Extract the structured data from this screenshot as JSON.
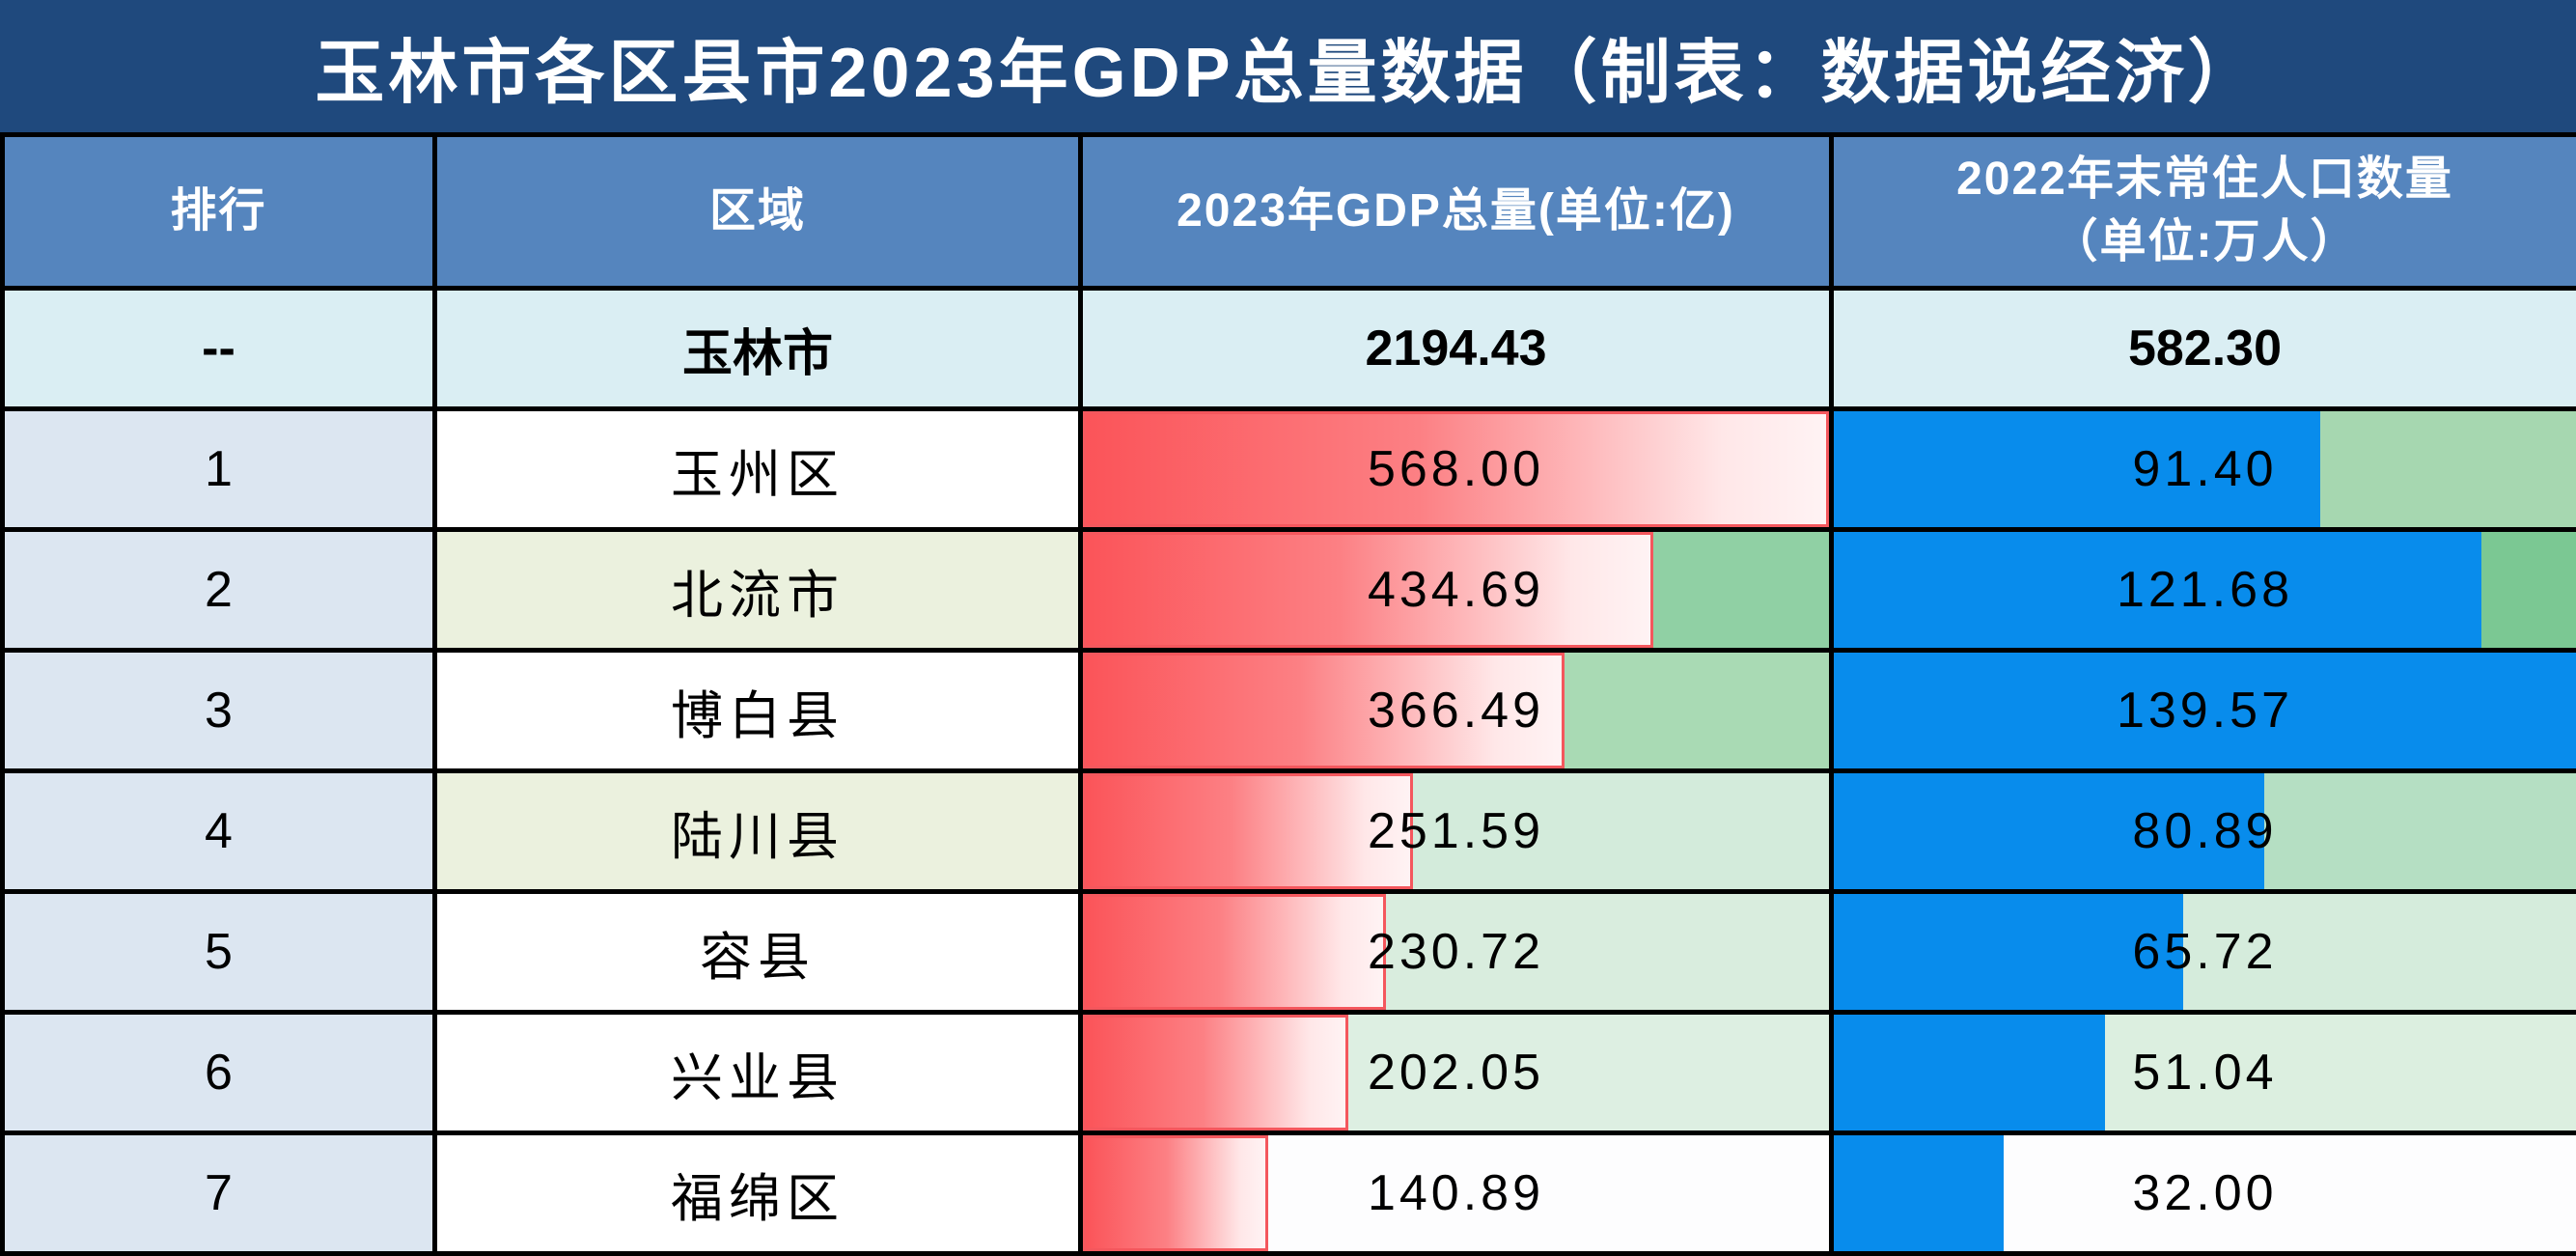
{
  "title": "玉林市各区县市2023年GDP总量数据（制表：数据说经济）",
  "colors": {
    "title_bg": "#1F497D",
    "header_bg": "#5585BE",
    "summary_bg": "#DAEEF3",
    "rank_bg": "#DCE6F1",
    "grid_line": "#000000",
    "bar_red_start": "#FB5459",
    "bar_red_end": "#FFF3F4",
    "bar_red_border": "#F4575D",
    "bar_blue": "#088CEC",
    "region_green": "#EBF1DE",
    "header_text": "#FFFFFF",
    "body_text": "#000000"
  },
  "header": {
    "rank": "排行",
    "region": "区域",
    "gdp": "2023年GDP总量(单位:亿)",
    "pop": "2022年末常住人口数量\n（单位:万人）"
  },
  "summary": {
    "rank": "--",
    "region": "玉林市",
    "gdp": "2194.43",
    "pop": "582.30"
  },
  "rows": [
    {
      "rank": "1",
      "region": "玉州区",
      "region_bg": "#FFFFFF",
      "gdp": "568.00",
      "gdp_pct": 100,
      "gdp_bg": "#8FD0A4",
      "pop": "91.40",
      "pop_pct": 65.5,
      "pop_bg": "#A6D7B0"
    },
    {
      "rank": "2",
      "region": "北流市",
      "region_bg": "#EBF1DE",
      "gdp": "434.69",
      "gdp_pct": 76.5,
      "gdp_bg": "#90D0A4",
      "pop": "121.68",
      "pop_pct": 87.2,
      "pop_bg": "#7BC893"
    },
    {
      "rank": "3",
      "region": "博白县",
      "region_bg": "#FFFFFF",
      "gdp": "366.49",
      "gdp_pct": 64.5,
      "gdp_bg": "#A9DAB4",
      "pop": "139.57",
      "pop_pct": 100,
      "pop_bg": "#6FC489"
    },
    {
      "rank": "4",
      "region": "陆川县",
      "region_bg": "#EBF1DE",
      "gdp": "251.59",
      "gdp_pct": 44.3,
      "gdp_bg": "#D3EBDB",
      "pop": "80.89",
      "pop_pct": 58.0,
      "pop_bg": "#B5DFC3"
    },
    {
      "rank": "5",
      "region": "容县",
      "region_bg": "#FFFFFF",
      "gdp": "230.72",
      "gdp_pct": 40.6,
      "gdp_bg": "#D9EDDE",
      "pop": "65.72",
      "pop_pct": 47.1,
      "pop_bg": "#D5ECDC"
    },
    {
      "rank": "6",
      "region": "兴业县",
      "region_bg": "#FFFFFF",
      "gdp": "202.05",
      "gdp_pct": 35.6,
      "gdp_bg": "#DDEFE2",
      "pop": "51.04",
      "pop_pct": 36.6,
      "pop_bg": "#DCEFE0"
    },
    {
      "rank": "7",
      "region": "福绵区",
      "region_bg": "#FFFFFF",
      "gdp": "140.89",
      "gdp_pct": 24.8,
      "gdp_bg": "#FDFDFE",
      "pop": "32.00",
      "pop_pct": 22.9,
      "pop_bg": "#FDFDFE"
    }
  ],
  "chart_data": {
    "type": "table",
    "title": "玉林市各区县市2023年GDP总量数据（制表：数据说经济）",
    "columns": [
      "排行",
      "区域",
      "2023年GDP总量(单位:亿)",
      "2022年末常住人口数量（单位:万人）"
    ],
    "rows": [
      {
        "rank": "--",
        "region": "玉林市",
        "gdp_2023_yi": 2194.43,
        "pop_2022_wan": 582.3
      },
      {
        "rank": "1",
        "region": "玉州区",
        "gdp_2023_yi": 568.0,
        "pop_2022_wan": 91.4
      },
      {
        "rank": "2",
        "region": "北流市",
        "gdp_2023_yi": 434.69,
        "pop_2022_wan": 121.68
      },
      {
        "rank": "3",
        "region": "博白县",
        "gdp_2023_yi": 366.49,
        "pop_2022_wan": 139.57
      },
      {
        "rank": "4",
        "region": "陆川县",
        "gdp_2023_yi": 251.59,
        "pop_2022_wan": 80.89
      },
      {
        "rank": "5",
        "region": "容县",
        "gdp_2023_yi": 230.72,
        "pop_2022_wan": 65.72
      },
      {
        "rank": "6",
        "region": "兴业县",
        "gdp_2023_yi": 202.05,
        "pop_2022_wan": 51.04
      },
      {
        "rank": "7",
        "region": "福绵区",
        "gdp_2023_yi": 140.89,
        "pop_2022_wan": 32.0
      }
    ],
    "data_bars": {
      "gdp_bar": {
        "style": "red-gradient",
        "scale_max": 568.0
      },
      "pop_bar": {
        "style": "solid-blue",
        "scale_max": 139.57
      },
      "cell_background": "green color scale (darker green = larger value, white = smallest)"
    },
    "legend_position": "none",
    "grid": true
  }
}
